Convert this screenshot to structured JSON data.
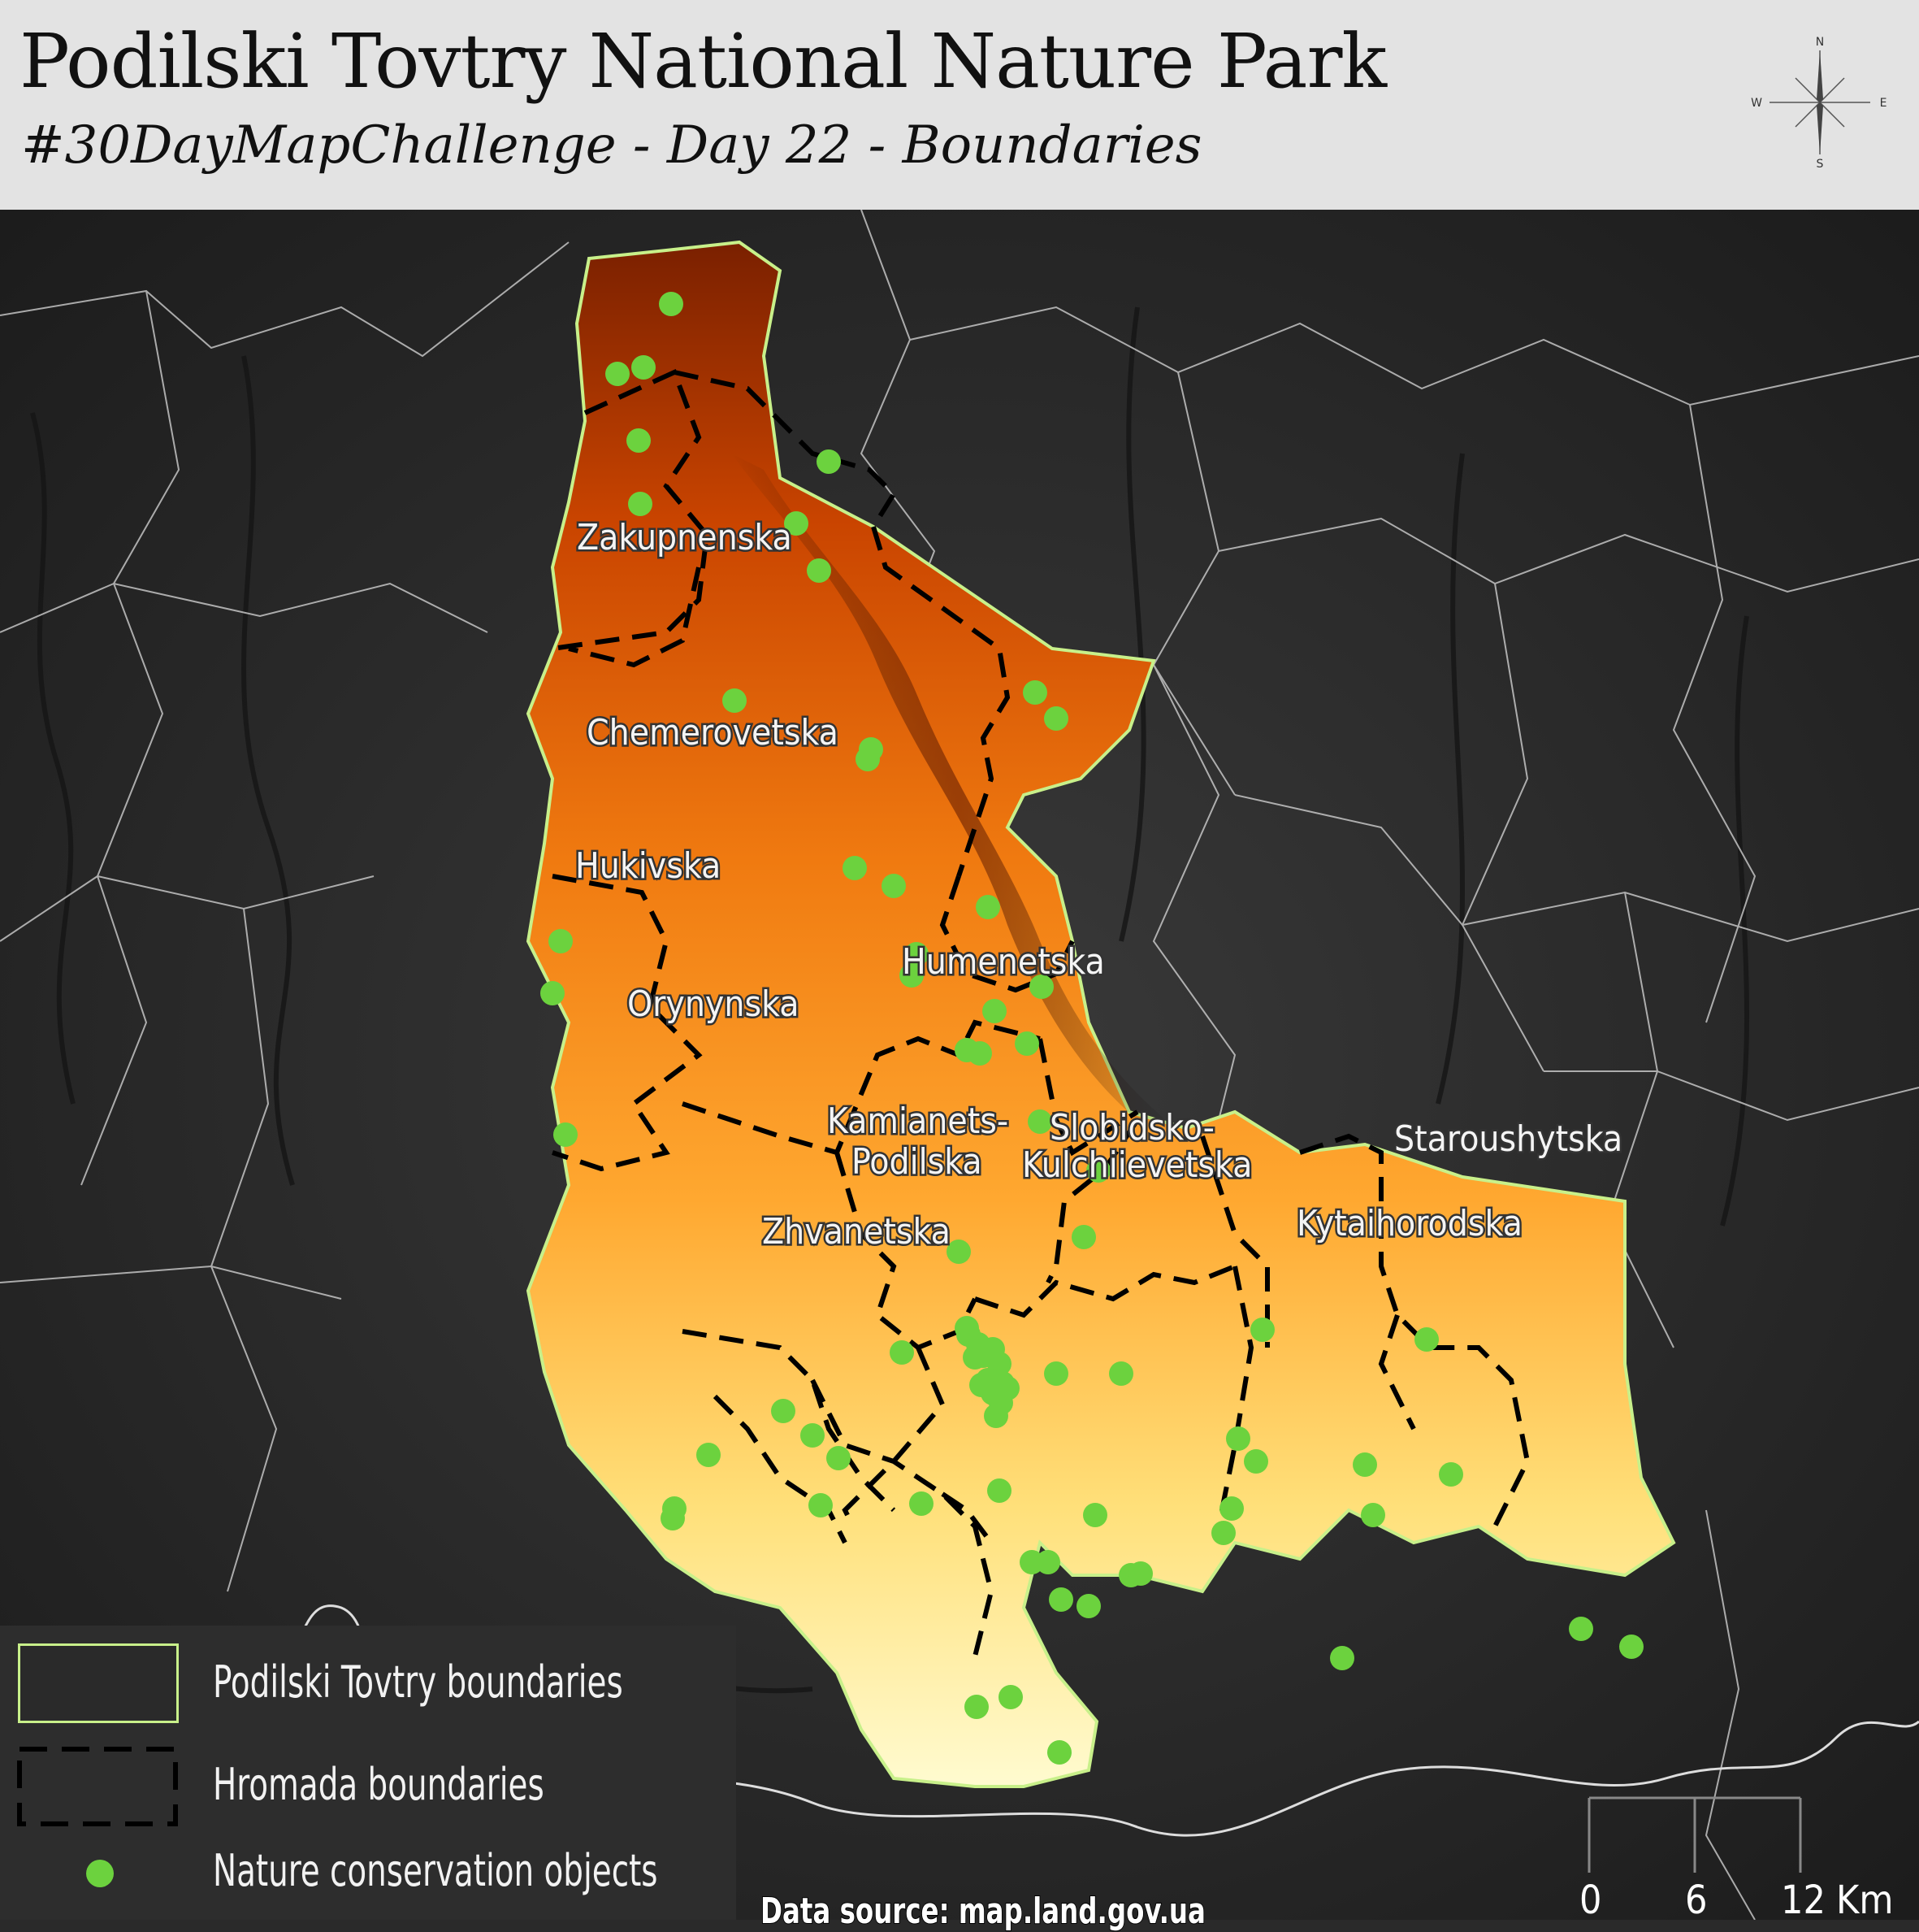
{
  "header": {
    "title": "Podilski Tovtry National Nature Park",
    "subtitle": "#30DayMapChallenge - Day 22 - Boundaries"
  },
  "compass": {
    "n": "N",
    "s": "S",
    "e": "E",
    "w": "W"
  },
  "hromadas": [
    "Zakupnenska",
    "Chemerovetska",
    "Hukivska",
    "Humenetska",
    "Orynynska",
    "Kamianets-",
    "Podilska",
    "Slobidsko-",
    "Kulchiievetska",
    "Staroushytska",
    "Kytaihorodska",
    "Zhvanetska"
  ],
  "legend": {
    "items": [
      "Podilski Tovtry boundaries",
      "Hromada boundaries",
      "Nature conservation objects"
    ]
  },
  "data_source": "Data source: map.land.gov.ua",
  "scale_bar": {
    "labels": [
      "0",
      "6",
      "12"
    ],
    "unit": "Km"
  },
  "colors": {
    "park_boundary": "#c8f08a",
    "conservation_dot": "#6cd23e",
    "relief_high": "#7a2000",
    "relief_low": "#ffffcc"
  }
}
